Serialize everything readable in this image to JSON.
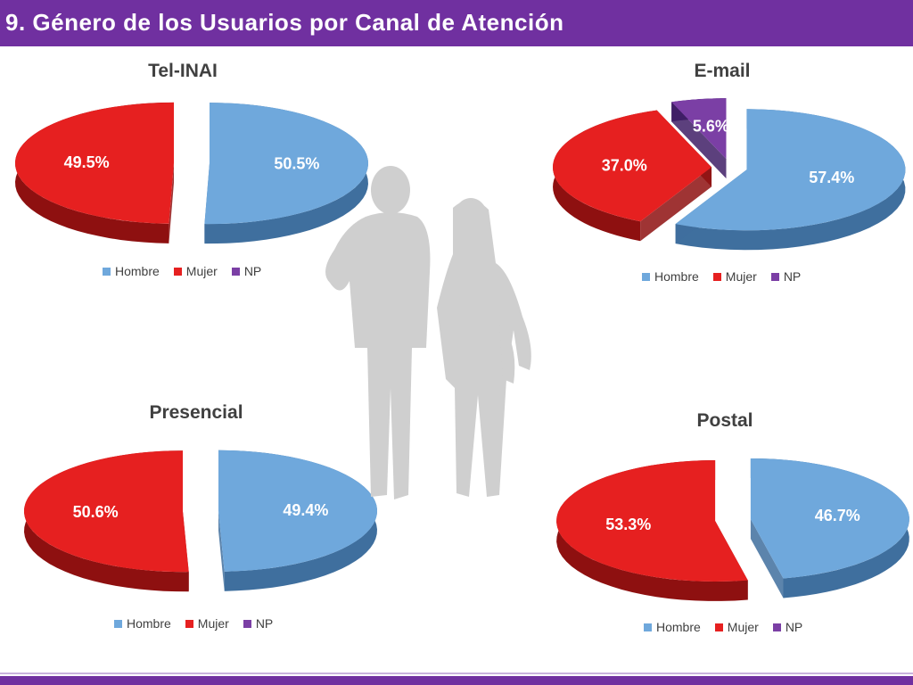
{
  "page": {
    "title": "9. Género de los Usuarios por Canal de Atención"
  },
  "legend": [
    "Hombre",
    "Mujer",
    "NP"
  ],
  "colors": {
    "hombre": "#6fa8dc",
    "mujer": "#e62020",
    "np": "#7b3fa5",
    "header": "#7030a0"
  },
  "chart_data": [
    {
      "type": "pie",
      "title": "Tel-INAI",
      "categories": [
        "Hombre",
        "Mujer",
        "NP"
      ],
      "values": [
        50.5,
        49.5,
        0
      ],
      "labels": [
        "50.5%",
        "49.5%",
        ""
      ],
      "legend_position": "bottom"
    },
    {
      "type": "pie",
      "title": "E-mail",
      "categories": [
        "Hombre",
        "Mujer",
        "NP"
      ],
      "values": [
        57.4,
        37.0,
        5.6
      ],
      "labels": [
        "57.4%",
        "37.0%",
        "5.6%"
      ],
      "legend_position": "bottom"
    },
    {
      "type": "pie",
      "title": "Presencial",
      "categories": [
        "Hombre",
        "Mujer",
        "NP"
      ],
      "values": [
        49.4,
        50.6,
        0
      ],
      "labels": [
        "49.4%",
        "50.6%",
        ""
      ],
      "legend_position": "bottom"
    },
    {
      "type": "pie",
      "title": "Postal",
      "categories": [
        "Hombre",
        "Mujer",
        "NP"
      ],
      "values": [
        46.7,
        53.3,
        0
      ],
      "labels": [
        "46.7%",
        "53.3%",
        ""
      ],
      "legend_position": "bottom"
    }
  ]
}
